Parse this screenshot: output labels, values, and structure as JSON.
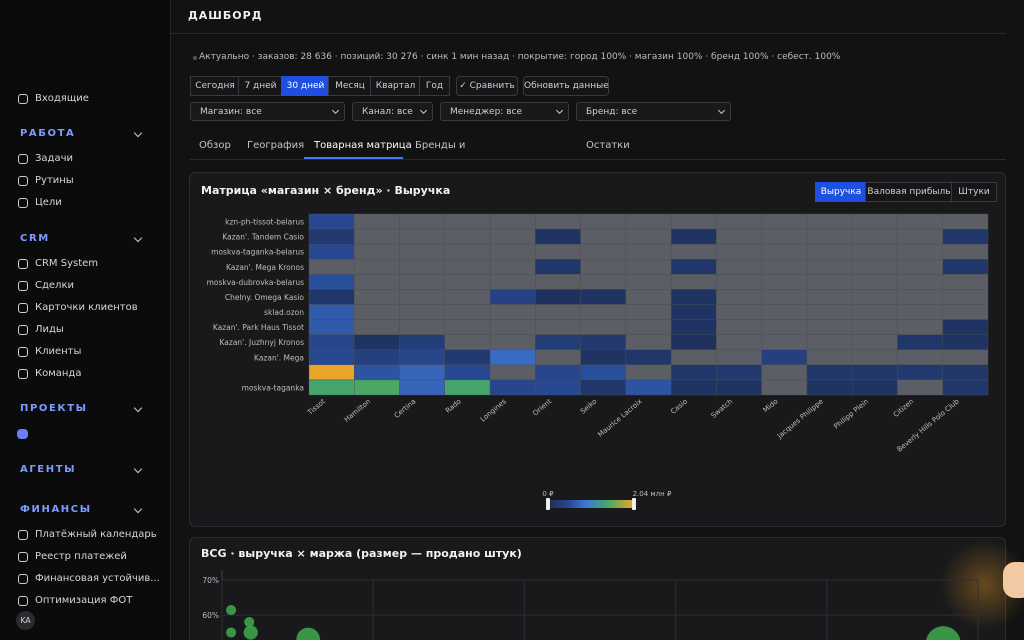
{
  "sidebar": {
    "top_item": "Входящие",
    "sections": [
      {
        "title": "РАБОТА",
        "items": [
          "Задачи",
          "Рутины",
          "Цели"
        ]
      },
      {
        "title": "CRM",
        "items": [
          "CRM System",
          "Сделки",
          "Карточки клиентов",
          "Лиды",
          "Клиенты",
          "Команда"
        ]
      },
      {
        "title": "ПРОЕКТЫ",
        "items": []
      },
      {
        "title": "АГЕНТЫ",
        "items": []
      },
      {
        "title": "ФИНАНСЫ",
        "items": [
          "Платёжный календарь",
          "Реестр платежей",
          "Финансовая устойчив...",
          "Оптимизация ФОТ"
        ]
      }
    ],
    "avatar": "KA"
  },
  "header": {
    "title": "ДАШБОРД",
    "status": "Актуально · заказов: 28 636 · позиций: 30 276 · синк 1 мин назад · покрытие: город 100% · магазин 100% · бренд 100% · себест. 100%"
  },
  "periods": {
    "options": [
      "Сегодня",
      "7 дней",
      "30 дней",
      "Месяц",
      "Квартал",
      "Год"
    ],
    "active": 2
  },
  "actions": [
    "✓ Сравнить",
    "Обновить данные"
  ],
  "filters": [
    "Магазин: все",
    "Канал: все",
    "Менеджер: все",
    "Бренд: все"
  ],
  "tabs": {
    "items": [
      "Обзор",
      "География",
      "Товарная матрица",
      "Бренды и",
      "Остатки"
    ],
    "active": 2
  },
  "heatmap_panel": {
    "title": "Матрица «магазин × бренд» · Выручка",
    "metrics": [
      "Выручка",
      "Валовая прибыль",
      "Штуки"
    ],
    "active_metric": 0,
    "chart_data": {
      "type": "heatmap",
      "rows": [
        "kzn-ph-tissot-belarus",
        "Kazan'. Tandem Casio",
        "moskva-taganka-belarus",
        "Kazan'. Mega Kronos",
        "moskva-dubrovka-belarus",
        "Chelny. Omega Kasio",
        "sklad.ozon",
        "Kazan'. Park Haus Tissot",
        "Kazan'. Juzhnyj Kronos",
        "Kazan'. Mega",
        null,
        "moskva-taganka"
      ],
      "columns": [
        "Tissot",
        "Hamilton",
        "Certina",
        "Rado",
        "Longines",
        "Orient",
        "Seiko",
        "Maurice Lacroix",
        "Casio",
        "Swatch",
        "Mido",
        "Jacques Philippe",
        "Philipp Plein",
        "Citizen",
        "Beverly Hills Polo Club"
      ],
      "values": [
        [
          0.5,
          null,
          null,
          null,
          null,
          null,
          null,
          null,
          null,
          null,
          null,
          null,
          null,
          null,
          null
        ],
        [
          0.25,
          null,
          null,
          null,
          null,
          0.15,
          null,
          null,
          0.15,
          null,
          null,
          null,
          null,
          null,
          0.2
        ],
        [
          0.5,
          null,
          null,
          null,
          null,
          null,
          null,
          null,
          null,
          null,
          null,
          null,
          null,
          null,
          null
        ],
        [
          null,
          null,
          null,
          null,
          null,
          0.2,
          null,
          null,
          0.2,
          null,
          null,
          null,
          null,
          null,
          0.2
        ],
        [
          0.55,
          null,
          null,
          null,
          null,
          null,
          null,
          null,
          null,
          null,
          null,
          null,
          null,
          null,
          null
        ],
        [
          0.2,
          null,
          null,
          null,
          0.4,
          0.12,
          0.15,
          null,
          0.15,
          null,
          null,
          null,
          null,
          null,
          null
        ],
        [
          0.65,
          null,
          null,
          null,
          null,
          null,
          null,
          null,
          0.15,
          null,
          null,
          null,
          null,
          null,
          null
        ],
        [
          0.65,
          null,
          null,
          null,
          null,
          null,
          null,
          null,
          0.15,
          null,
          null,
          null,
          null,
          null,
          0.15
        ],
        [
          0.45,
          0.15,
          0.3,
          null,
          null,
          0.3,
          0.25,
          null,
          0.1,
          null,
          null,
          null,
          null,
          0.2,
          0.15
        ],
        [
          0.5,
          0.35,
          0.45,
          0.25,
          0.8,
          null,
          0.15,
          0.2,
          null,
          null,
          0.35,
          null,
          null,
          null,
          null
        ],
        [
          2.0,
          0.6,
          0.75,
          0.5,
          null,
          0.45,
          0.55,
          null,
          0.2,
          0.25,
          null,
          0.2,
          0.2,
          0.25,
          0.2
        ],
        [
          1.4,
          1.45,
          0.75,
          1.4,
          0.45,
          0.5,
          0.2,
          0.6,
          0.15,
          0.15,
          null,
          0.15,
          0.15,
          null,
          0.2
        ]
      ],
      "zlim": [
        0,
        2.04
      ],
      "zticks": [
        {
          "value": 0,
          "label": "0 ₽"
        },
        {
          "value": 2.04,
          "label": "2.04 млн ₽"
        }
      ]
    }
  },
  "bcg_panel": {
    "title": "BCG · выручка × маржа (размер — продано штук)",
    "chart_data": {
      "type": "scatter",
      "x": [
        0.06,
        0.18,
        0.06,
        0.19,
        0.57,
        4.77
      ],
      "values": [
        61.4,
        58,
        55,
        55,
        53,
        51.8
      ],
      "sizes": [
        10,
        10,
        10,
        20,
        55,
        120
      ],
      "color": "#3fa34d",
      "xlim": [
        0,
        5
      ],
      "ylim": [
        0,
        70
      ],
      "yticks": [
        {
          "value": 70,
          "label": "70%"
        },
        {
          "value": 60,
          "label": "60%"
        }
      ],
      "grid": true
    }
  }
}
